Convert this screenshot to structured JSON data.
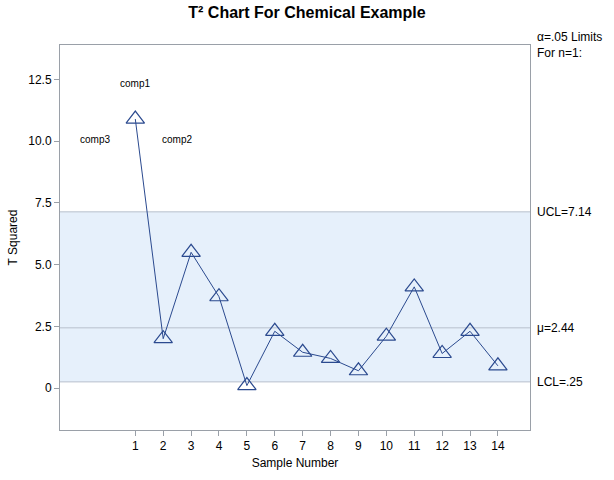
{
  "chart_data": {
    "type": "line",
    "title": "T² Chart For Chemical Example",
    "x_label": "Sample Number",
    "y_label": "T Squared",
    "x": [
      1,
      2,
      3,
      4,
      5,
      6,
      7,
      8,
      9,
      10,
      11,
      12,
      13,
      14
    ],
    "values": [
      10.9,
      2.0,
      5.5,
      3.7,
      0.1,
      2.3,
      1.45,
      1.2,
      0.7,
      2.1,
      4.1,
      1.4,
      2.3,
      0.9
    ],
    "color": "#2b4a8f",
    "marker": "triangle",
    "xlim": [
      -1.7,
      15.15
    ],
    "xticks": [
      1,
      2,
      3,
      4,
      5,
      6,
      7,
      8,
      9,
      10,
      11,
      12,
      13,
      14
    ],
    "ylim": [
      -1.7,
      13.9
    ],
    "yticks": [
      0,
      2.5,
      {
        "value": 5,
        "label": "5.0"
      },
      7.5,
      {
        "value": 10,
        "label": "10.0"
      },
      12.5
    ],
    "grid": false,
    "limits_note": [
      "α=.05 Limits",
      "For n=1:"
    ],
    "limits": [
      {
        "value": 7.14,
        "label": "UCL=7.14"
      },
      {
        "value": 2.44,
        "label": "μ=2.44"
      },
      {
        "value": 0.25,
        "label": "LCL=.25"
      }
    ],
    "point_labels": {
      "x": 1,
      "texts": [
        "comp1",
        "comp2",
        "comp3"
      ]
    }
  }
}
